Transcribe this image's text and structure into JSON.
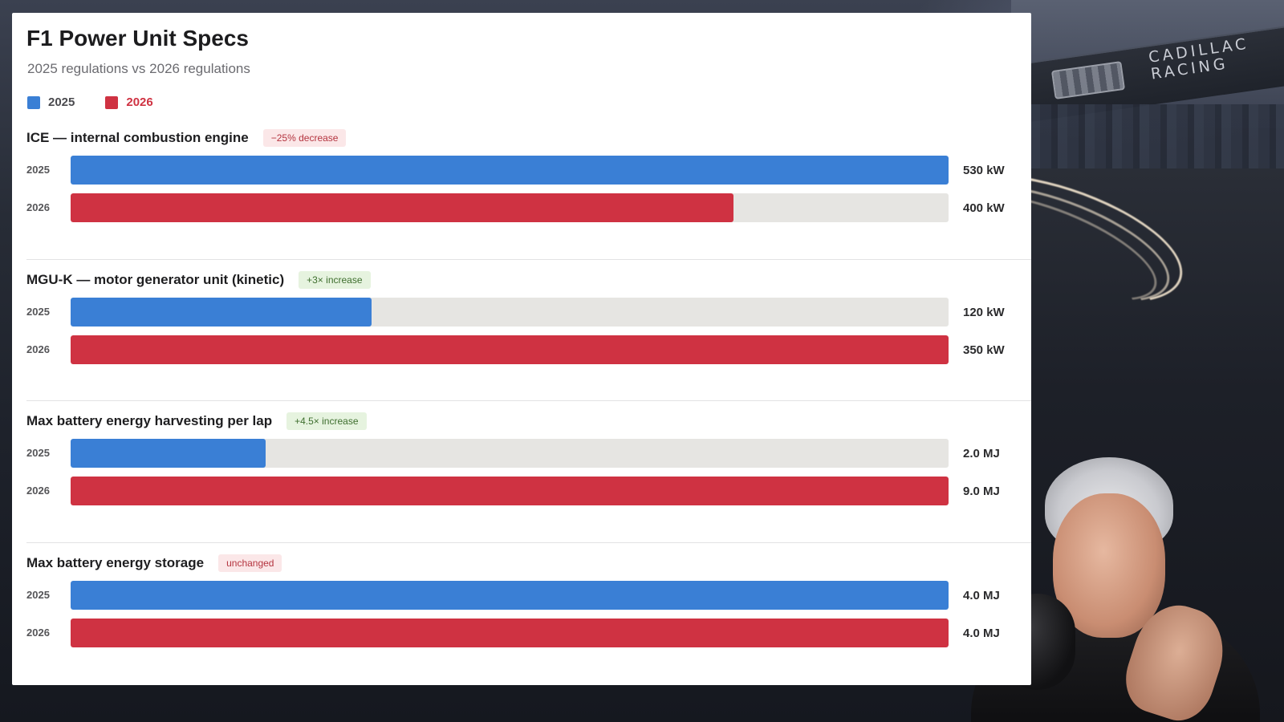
{
  "background": {
    "brand_line1": "CADILLAC",
    "brand_line2": "RACING"
  },
  "colors": {
    "y2025": "#3a7fd5",
    "y2026": "#cf3242",
    "track": "#e6e5e2"
  },
  "chart_data": {
    "type": "bar",
    "orientation": "horizontal",
    "title": "F1 Power Unit Specs",
    "subtitle": "2025 regulations vs 2026 regulations",
    "legend": [
      {
        "name": "2025",
        "color": "#3a7fd5"
      },
      {
        "name": "2026",
        "color": "#cf3242"
      }
    ],
    "legend_placement": "top-left",
    "groups": [
      {
        "title": "ICE — internal combustion engine",
        "tag": "−25% decrease",
        "tag_style": "red",
        "max": 530,
        "bars": [
          {
            "year": "2025",
            "value": 530,
            "label": "530 kW"
          },
          {
            "year": "2026",
            "value": 400,
            "label": "400 kW"
          }
        ]
      },
      {
        "title": "MGU-K — motor generator unit (kinetic)",
        "tag": "+3× increase",
        "tag_style": "green",
        "max": 350,
        "bars": [
          {
            "year": "2025",
            "value": 120,
            "label": "120 kW"
          },
          {
            "year": "2026",
            "value": 350,
            "label": "350 kW"
          }
        ]
      },
      {
        "title": "Max battery energy harvesting per lap",
        "tag": "+4.5× increase",
        "tag_style": "green",
        "max": 9.0,
        "bars": [
          {
            "year": "2025",
            "value": 2.0,
            "label": "2.0 MJ"
          },
          {
            "year": "2026",
            "value": 9.0,
            "label": "9.0 MJ"
          }
        ]
      },
      {
        "title": "Max battery energy storage",
        "tag": "unchanged",
        "tag_style": "neutral",
        "max": 4.0,
        "bars": [
          {
            "year": "2025",
            "value": 4.0,
            "label": "4.0 MJ"
          },
          {
            "year": "2026",
            "value": 4.0,
            "label": "4.0 MJ"
          }
        ]
      }
    ]
  }
}
